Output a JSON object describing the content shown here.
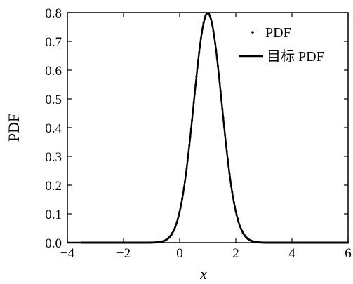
{
  "chart_data": {
    "type": "line",
    "xlabel": "x",
    "ylabel": "PDF",
    "xlim": [
      -4,
      6
    ],
    "ylim": [
      0,
      0.8
    ],
    "x_ticks": [
      -4,
      -2,
      0,
      2,
      4,
      6
    ],
    "y_ticks": [
      0.0,
      0.1,
      0.2,
      0.3,
      0.4,
      0.5,
      0.6,
      0.7,
      0.8
    ],
    "x_tick_labels": [
      "−4",
      "−2",
      "0",
      "2",
      "4",
      "6"
    ],
    "y_tick_labels": [
      "0.0",
      "0.1",
      "0.2",
      "0.3",
      "0.4",
      "0.5",
      "0.6",
      "0.7",
      "0.8"
    ],
    "grid": false,
    "legend_position": "top-right",
    "distribution": {
      "mean": 1.0,
      "std": 0.5
    },
    "series": [
      {
        "name": "PDF",
        "style": "dots",
        "color": "#000000",
        "x_range": [
          -3.5,
          6.0
        ],
        "num_points": 300
      },
      {
        "name": "目标 PDF",
        "style": "line",
        "color": "#000000",
        "x_range": [
          -4.0,
          6.0
        ]
      }
    ]
  }
}
